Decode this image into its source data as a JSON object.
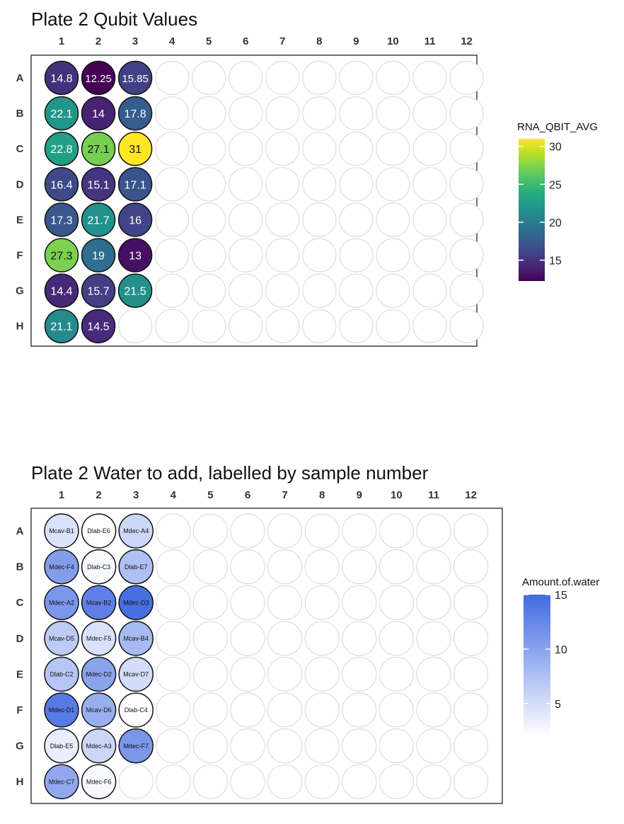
{
  "plates": [
    {
      "title": "Plate 2 Qubit Values",
      "legend": {
        "title": "RNA_QBIT_AVG",
        "scale": "viridis",
        "range": [
          12.25,
          31
        ],
        "ticks": [
          15,
          20,
          25,
          30
        ]
      },
      "wells": [
        {
          "row": "A",
          "col": 1,
          "label": "14.8",
          "value": 14.8
        },
        {
          "row": "A",
          "col": 2,
          "label": "12.25",
          "value": 12.25
        },
        {
          "row": "A",
          "col": 3,
          "label": "15.85",
          "value": 15.85
        },
        {
          "row": "B",
          "col": 1,
          "label": "22.1",
          "value": 22.1
        },
        {
          "row": "B",
          "col": 2,
          "label": "14",
          "value": 14
        },
        {
          "row": "B",
          "col": 3,
          "label": "17.8",
          "value": 17.8
        },
        {
          "row": "C",
          "col": 1,
          "label": "22.8",
          "value": 22.8
        },
        {
          "row": "C",
          "col": 2,
          "label": "27.1",
          "value": 27.1
        },
        {
          "row": "C",
          "col": 3,
          "label": "31",
          "value": 31
        },
        {
          "row": "D",
          "col": 1,
          "label": "16.4",
          "value": 16.4
        },
        {
          "row": "D",
          "col": 2,
          "label": "15.1",
          "value": 15.1
        },
        {
          "row": "D",
          "col": 3,
          "label": "17.1",
          "value": 17.1
        },
        {
          "row": "E",
          "col": 1,
          "label": "17.3",
          "value": 17.3
        },
        {
          "row": "E",
          "col": 2,
          "label": "21.7",
          "value": 21.7
        },
        {
          "row": "E",
          "col": 3,
          "label": "16",
          "value": 16
        },
        {
          "row": "F",
          "col": 1,
          "label": "27.3",
          "value": 27.3
        },
        {
          "row": "F",
          "col": 2,
          "label": "19",
          "value": 19
        },
        {
          "row": "F",
          "col": 3,
          "label": "13",
          "value": 13
        },
        {
          "row": "G",
          "col": 1,
          "label": "14.4",
          "value": 14.4
        },
        {
          "row": "G",
          "col": 2,
          "label": "15.7",
          "value": 15.7
        },
        {
          "row": "G",
          "col": 3,
          "label": "21.5",
          "value": 21.5
        },
        {
          "row": "H",
          "col": 1,
          "label": "21.1",
          "value": 21.1
        },
        {
          "row": "H",
          "col": 2,
          "label": "14.5",
          "value": 14.5
        }
      ]
    },
    {
      "title": "Plate 2 Water to add, labelled by sample number",
      "legend": {
        "title": "Amount.of.water",
        "scale": "white-to-royalblue",
        "color_low": "#ffffff",
        "color_high": "#4169e1",
        "range": [
          2,
          15
        ],
        "ticks": [
          5,
          10,
          15
        ]
      },
      "wells": [
        {
          "row": "A",
          "col": 1,
          "label": "Mcav-B1",
          "value": 4.5
        },
        {
          "row": "A",
          "col": 2,
          "label": "Dlab-E6",
          "value": 2.0
        },
        {
          "row": "A",
          "col": 3,
          "label": "Mdec-A4",
          "value": 5.5
        },
        {
          "row": "B",
          "col": 1,
          "label": "Mdec-F4",
          "value": 10.5
        },
        {
          "row": "B",
          "col": 2,
          "label": "Dlab-C3",
          "value": 2.5
        },
        {
          "row": "B",
          "col": 3,
          "label": "Dlab-E7",
          "value": 7.5
        },
        {
          "row": "C",
          "col": 1,
          "label": "Mdec-A2",
          "value": 11.0
        },
        {
          "row": "C",
          "col": 2,
          "label": "Mcav-B2",
          "value": 13.0
        },
        {
          "row": "C",
          "col": 3,
          "label": "Mdec-D3",
          "value": 14.5
        },
        {
          "row": "D",
          "col": 1,
          "label": "Mcav-D5",
          "value": 6.5
        },
        {
          "row": "D",
          "col": 2,
          "label": "Mdec-F5",
          "value": 4.5
        },
        {
          "row": "D",
          "col": 3,
          "label": "Mcav-B4",
          "value": 8.0
        },
        {
          "row": "E",
          "col": 1,
          "label": "Dlab-C2",
          "value": 7.0
        },
        {
          "row": "E",
          "col": 2,
          "label": "Mdec-D2",
          "value": 10.0
        },
        {
          "row": "E",
          "col": 3,
          "label": "Mcav-D7",
          "value": 5.0
        },
        {
          "row": "F",
          "col": 1,
          "label": "Mdec-D1",
          "value": 13.5
        },
        {
          "row": "F",
          "col": 2,
          "label": "Mcav-D6",
          "value": 9.0
        },
        {
          "row": "F",
          "col": 3,
          "label": "Dlab-C4",
          "value": 2.0
        },
        {
          "row": "G",
          "col": 1,
          "label": "Dlab-E5",
          "value": 3.5
        },
        {
          "row": "G",
          "col": 2,
          "label": "Mdec-A3",
          "value": 5.5
        },
        {
          "row": "G",
          "col": 3,
          "label": "Mdec-F7",
          "value": 11.0
        },
        {
          "row": "H",
          "col": 1,
          "label": "Mdec-C7",
          "value": 9.5
        },
        {
          "row": "H",
          "col": 2,
          "label": "Mdec-F6",
          "value": 2.5
        }
      ]
    }
  ],
  "chart_data": [
    {
      "type": "heatmap",
      "title": "Plate 2 Qubit Values",
      "xlabel": "",
      "ylabel": "",
      "x": [
        "1",
        "2",
        "3",
        "4",
        "5",
        "6",
        "7",
        "8",
        "9",
        "10",
        "11",
        "12"
      ],
      "y": [
        "A",
        "B",
        "C",
        "D",
        "E",
        "F",
        "G",
        "H"
      ],
      "legend_title": "RNA_QBIT_AVG",
      "legend_position": "right",
      "color_range": [
        12.25,
        31
      ],
      "legend_ticks": [
        15,
        20,
        25,
        30
      ],
      "grid": false,
      "cells": [
        {
          "row": "A",
          "col": "1",
          "value": 14.8
        },
        {
          "row": "A",
          "col": "2",
          "value": 12.25
        },
        {
          "row": "A",
          "col": "3",
          "value": 15.85
        },
        {
          "row": "B",
          "col": "1",
          "value": 22.1
        },
        {
          "row": "B",
          "col": "2",
          "value": 14
        },
        {
          "row": "B",
          "col": "3",
          "value": 17.8
        },
        {
          "row": "C",
          "col": "1",
          "value": 22.8
        },
        {
          "row": "C",
          "col": "2",
          "value": 27.1
        },
        {
          "row": "C",
          "col": "3",
          "value": 31
        },
        {
          "row": "D",
          "col": "1",
          "value": 16.4
        },
        {
          "row": "D",
          "col": "2",
          "value": 15.1
        },
        {
          "row": "D",
          "col": "3",
          "value": 17.1
        },
        {
          "row": "E",
          "col": "1",
          "value": 17.3
        },
        {
          "row": "E",
          "col": "2",
          "value": 21.7
        },
        {
          "row": "E",
          "col": "3",
          "value": 16
        },
        {
          "row": "F",
          "col": "1",
          "value": 27.3
        },
        {
          "row": "F",
          "col": "2",
          "value": 19
        },
        {
          "row": "F",
          "col": "3",
          "value": 13
        },
        {
          "row": "G",
          "col": "1",
          "value": 14.4
        },
        {
          "row": "G",
          "col": "2",
          "value": 15.7
        },
        {
          "row": "G",
          "col": "3",
          "value": 21.5
        },
        {
          "row": "H",
          "col": "1",
          "value": 21.1
        },
        {
          "row": "H",
          "col": "2",
          "value": 14.5
        }
      ]
    },
    {
      "type": "heatmap",
      "title": "Plate 2 Water to add, labelled by sample number",
      "xlabel": "",
      "ylabel": "",
      "x": [
        "1",
        "2",
        "3",
        "4",
        "5",
        "6",
        "7",
        "8",
        "9",
        "10",
        "11",
        "12"
      ],
      "y": [
        "A",
        "B",
        "C",
        "D",
        "E",
        "F",
        "G",
        "H"
      ],
      "legend_title": "Amount.of.water",
      "legend_position": "right",
      "color_range": [
        2,
        15
      ],
      "legend_ticks": [
        5,
        10,
        15
      ],
      "grid": false,
      "cells": [
        {
          "row": "A",
          "col": "1",
          "label": "Mcav-B1",
          "value": 4.5
        },
        {
          "row": "A",
          "col": "2",
          "label": "Dlab-E6",
          "value": 2.0
        },
        {
          "row": "A",
          "col": "3",
          "label": "Mdec-A4",
          "value": 5.5
        },
        {
          "row": "B",
          "col": "1",
          "label": "Mdec-F4",
          "value": 10.5
        },
        {
          "row": "B",
          "col": "2",
          "label": "Dlab-C3",
          "value": 2.5
        },
        {
          "row": "B",
          "col": "3",
          "label": "Dlab-E7",
          "value": 7.5
        },
        {
          "row": "C",
          "col": "1",
          "label": "Mdec-A2",
          "value": 11.0
        },
        {
          "row": "C",
          "col": "2",
          "label": "Mcav-B2",
          "value": 13.0
        },
        {
          "row": "C",
          "col": "3",
          "label": "Mdec-D3",
          "value": 14.5
        },
        {
          "row": "D",
          "col": "1",
          "label": "Mcav-D5",
          "value": 6.5
        },
        {
          "row": "D",
          "col": "2",
          "label": "Mdec-F5",
          "value": 4.5
        },
        {
          "row": "D",
          "col": "3",
          "label": "Mcav-B4",
          "value": 8.0
        },
        {
          "row": "E",
          "col": "1",
          "label": "Dlab-C2",
          "value": 7.0
        },
        {
          "row": "E",
          "col": "2",
          "label": "Mdec-D2",
          "value": 10.0
        },
        {
          "row": "E",
          "col": "3",
          "label": "Mcav-D7",
          "value": 5.0
        },
        {
          "row": "F",
          "col": "1",
          "label": "Mdec-D1",
          "value": 13.5
        },
        {
          "row": "F",
          "col": "2",
          "label": "Mcav-D6",
          "value": 9.0
        },
        {
          "row": "F",
          "col": "3",
          "label": "Dlab-C4",
          "value": 2.0
        },
        {
          "row": "G",
          "col": "1",
          "label": "Dlab-E5",
          "value": 3.5
        },
        {
          "row": "G",
          "col": "2",
          "label": "Mdec-A3",
          "value": 5.5
        },
        {
          "row": "G",
          "col": "3",
          "label": "Mdec-F7",
          "value": 11.0
        },
        {
          "row": "H",
          "col": "1",
          "label": "Mdec-C7",
          "value": 9.5
        },
        {
          "row": "H",
          "col": "2",
          "label": "Mdec-F6",
          "value": 2.5
        }
      ]
    }
  ],
  "columns": [
    "1",
    "2",
    "3",
    "4",
    "5",
    "6",
    "7",
    "8",
    "9",
    "10",
    "11",
    "12"
  ],
  "rows": [
    "A",
    "B",
    "C",
    "D",
    "E",
    "F",
    "G",
    "H"
  ]
}
